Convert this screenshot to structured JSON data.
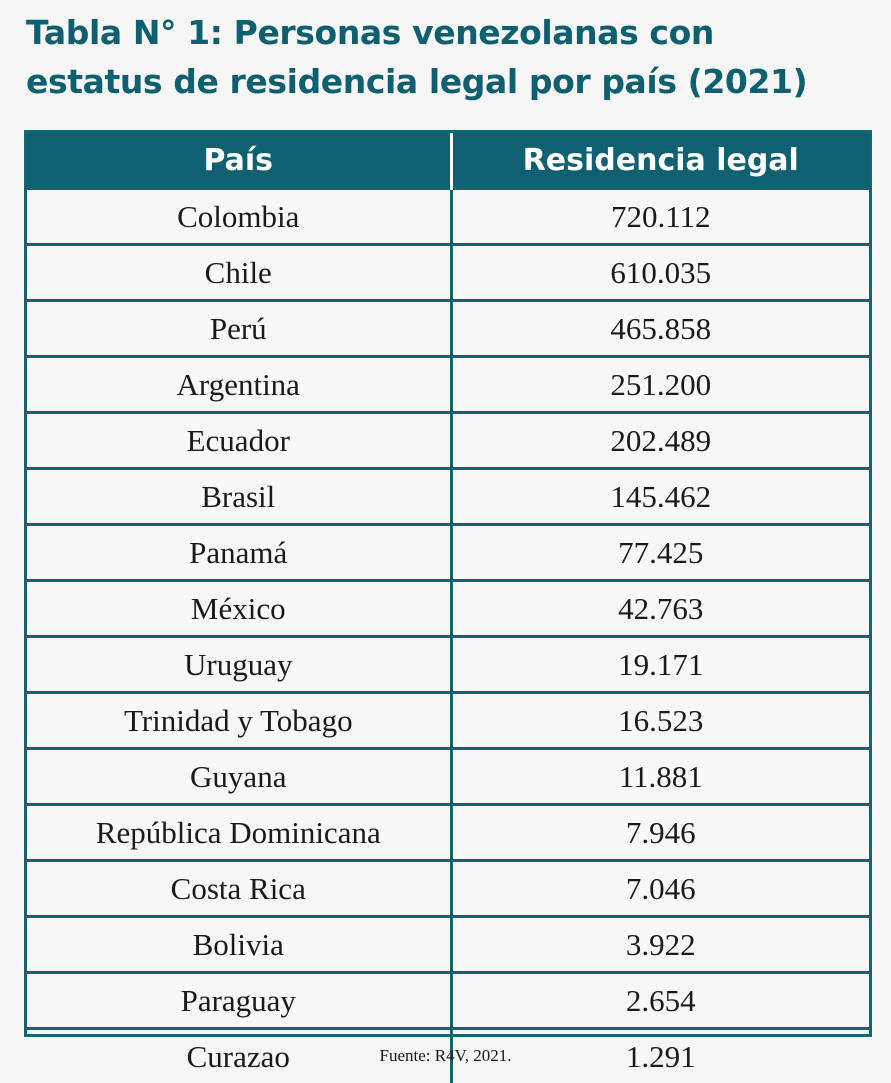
{
  "title": {
    "line1": "Tabla N° 1: Personas venezolanas con",
    "line2": "estatus de residencia legal por país (2021)"
  },
  "table": {
    "headers": [
      "País",
      "Residencia legal"
    ],
    "rows": [
      [
        "Colombia",
        "720.112"
      ],
      [
        "Chile",
        "610.035"
      ],
      [
        "Perú",
        "465.858"
      ],
      [
        "Argentina",
        "251.200"
      ],
      [
        "Ecuador",
        "202.489"
      ],
      [
        "Brasil",
        "145.462"
      ],
      [
        "Panamá",
        "77.425"
      ],
      [
        "México",
        "42.763"
      ],
      [
        "Uruguay",
        "19.171"
      ],
      [
        "Trinidad y Tobago",
        "16.523"
      ],
      [
        "Guyana",
        "11.881"
      ],
      [
        "República Dominicana",
        "7.946"
      ],
      [
        "Costa Rica",
        "7.046"
      ],
      [
        "Bolivia",
        "3.922"
      ],
      [
        "Paraguay",
        "2.654"
      ],
      [
        "Curazao",
        "1.291"
      ]
    ]
  },
  "source": "Fuente: R4V, 2021.",
  "colors": {
    "title": "#0e5f6f",
    "header_bg": "#0f6070",
    "border": "#136574",
    "background": "#f6f6f6"
  }
}
